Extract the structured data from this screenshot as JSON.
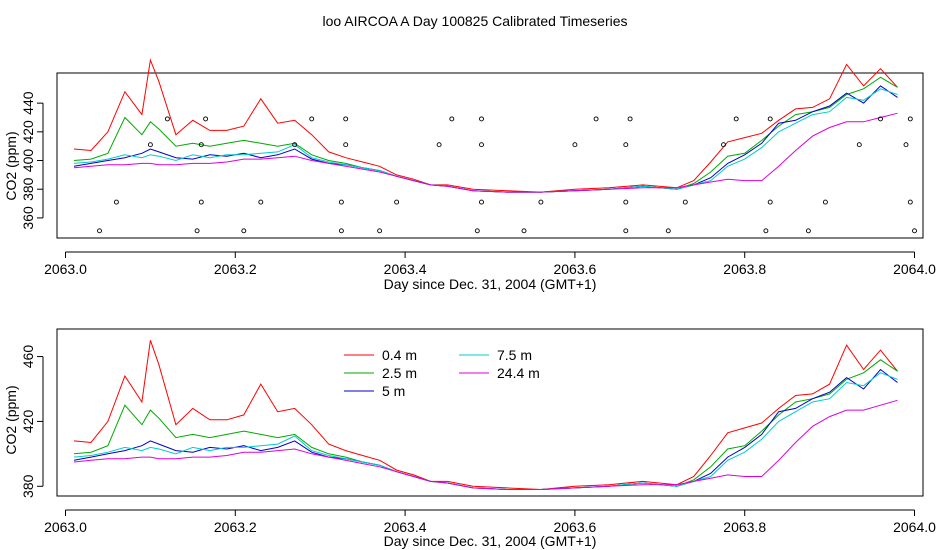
{
  "title": "loo AIRCOA A  Day 100825  Calibrated Timeseries",
  "chart_data": [
    {
      "type": "line",
      "xlabel": "Day since Dec. 31, 2004 (GMT+1)",
      "ylabel": "CO2 (ppm)",
      "xlim": [
        2062.99,
        2064.01
      ],
      "ylim": [
        346,
        461
      ],
      "xticks": [
        "2063.0",
        "2063.2",
        "2063.4",
        "2063.6",
        "2063.8",
        "2064.0"
      ],
      "yticks": [
        "360",
        "380",
        "400",
        "420",
        "440"
      ],
      "series": [
        {
          "name": "0.4 m",
          "color": "#ff0000",
          "x": [
            2063.01,
            2063.03,
            2063.05,
            2063.07,
            2063.09,
            2063.1,
            2063.11,
            2063.13,
            2063.15,
            2063.17,
            2063.19,
            2063.21,
            2063.23,
            2063.25,
            2063.27,
            2063.29,
            2063.31,
            2063.33,
            2063.35,
            2063.37,
            2063.39,
            2063.41,
            2063.43,
            2063.45,
            2063.48,
            2063.52,
            2063.56,
            2063.6,
            2063.64,
            2063.68,
            2063.72,
            2063.74,
            2063.76,
            2063.78,
            2063.8,
            2063.82,
            2063.84,
            2063.86,
            2063.88,
            2063.9,
            2063.92,
            2063.94,
            2063.96,
            2063.98
          ],
          "y": [
            408,
            407,
            420,
            448,
            432,
            470,
            455,
            418,
            428,
            421,
            421,
            424,
            443,
            426,
            428,
            418,
            406,
            402,
            399,
            396,
            390,
            387,
            383,
            383,
            380,
            379,
            378,
            380,
            381,
            383,
            381,
            386,
            399,
            413,
            416,
            419,
            428,
            436,
            437,
            443,
            467,
            452,
            464,
            451
          ]
        },
        {
          "name": "2.5 m",
          "color": "#00aa00",
          "x": [
            2063.01,
            2063.03,
            2063.05,
            2063.07,
            2063.09,
            2063.1,
            2063.11,
            2063.13,
            2063.15,
            2063.17,
            2063.19,
            2063.21,
            2063.23,
            2063.25,
            2063.27,
            2063.29,
            2063.31,
            2063.33,
            2063.35,
            2063.37,
            2063.39,
            2063.41,
            2063.43,
            2063.45,
            2063.48,
            2063.52,
            2063.56,
            2063.6,
            2063.64,
            2063.68,
            2063.72,
            2063.74,
            2063.76,
            2063.78,
            2063.8,
            2063.82,
            2063.84,
            2063.86,
            2063.88,
            2063.9,
            2063.92,
            2063.94,
            2063.96,
            2063.98
          ],
          "y": [
            400,
            401,
            405,
            430,
            418,
            427,
            422,
            410,
            412,
            410,
            412,
            414,
            412,
            410,
            412,
            404,
            400,
            398,
            395,
            393,
            389,
            386,
            383,
            382,
            379,
            378,
            378,
            379,
            380,
            382,
            380,
            384,
            392,
            403,
            405,
            414,
            424,
            432,
            434,
            437,
            446,
            450,
            458,
            451
          ]
        },
        {
          "name": "5 m",
          "color": "#0000cc",
          "x": [
            2063.01,
            2063.03,
            2063.05,
            2063.07,
            2063.09,
            2063.1,
            2063.11,
            2063.13,
            2063.15,
            2063.17,
            2063.19,
            2063.21,
            2063.23,
            2063.25,
            2063.27,
            2063.29,
            2063.31,
            2063.33,
            2063.35,
            2063.37,
            2063.39,
            2063.41,
            2063.43,
            2063.45,
            2063.48,
            2063.52,
            2063.56,
            2063.6,
            2063.64,
            2063.68,
            2063.72,
            2063.74,
            2063.76,
            2063.78,
            2063.8,
            2063.82,
            2063.84,
            2063.86,
            2063.88,
            2063.9,
            2063.92,
            2063.94,
            2063.96,
            2063.98
          ],
          "y": [
            396,
            398,
            400,
            402,
            405,
            408,
            406,
            402,
            401,
            404,
            403,
            405,
            402,
            404,
            408,
            401,
            398,
            397,
            395,
            393,
            389,
            386,
            383,
            382,
            379,
            378,
            378,
            379,
            380,
            382,
            380,
            383,
            388,
            398,
            404,
            412,
            426,
            428,
            434,
            438,
            447,
            440,
            452,
            444
          ]
        },
        {
          "name": "7.5 m",
          "color": "#00cccc",
          "x": [
            2063.01,
            2063.03,
            2063.05,
            2063.07,
            2063.09,
            2063.1,
            2063.11,
            2063.13,
            2063.15,
            2063.17,
            2063.19,
            2063.21,
            2063.23,
            2063.25,
            2063.27,
            2063.29,
            2063.31,
            2063.33,
            2063.35,
            2063.37,
            2063.39,
            2063.41,
            2063.43,
            2063.45,
            2063.48,
            2063.52,
            2063.56,
            2063.6,
            2063.64,
            2063.68,
            2063.72,
            2063.74,
            2063.76,
            2063.78,
            2063.8,
            2063.82,
            2063.84,
            2063.86,
            2063.88,
            2063.9,
            2063.92,
            2063.94,
            2063.96,
            2063.98
          ],
          "y": [
            398,
            399,
            401,
            404,
            402,
            404,
            403,
            400,
            404,
            402,
            404,
            404,
            405,
            406,
            411,
            402,
            399,
            397,
            395,
            393,
            389,
            386,
            383,
            382,
            379,
            378,
            378,
            379,
            380,
            382,
            380,
            383,
            386,
            396,
            401,
            409,
            420,
            426,
            432,
            434,
            444,
            442,
            450,
            446
          ]
        },
        {
          "name": "24.4 m",
          "color": "#dd00dd",
          "x": [
            2063.01,
            2063.03,
            2063.05,
            2063.07,
            2063.09,
            2063.1,
            2063.11,
            2063.13,
            2063.15,
            2063.17,
            2063.19,
            2063.21,
            2063.23,
            2063.25,
            2063.27,
            2063.29,
            2063.31,
            2063.33,
            2063.35,
            2063.37,
            2063.39,
            2063.41,
            2063.43,
            2063.45,
            2063.48,
            2063.52,
            2063.56,
            2063.6,
            2063.64,
            2063.68,
            2063.72,
            2063.74,
            2063.76,
            2063.78,
            2063.8,
            2063.82,
            2063.84,
            2063.86,
            2063.88,
            2063.9,
            2063.92,
            2063.94,
            2063.96,
            2063.98
          ],
          "y": [
            395,
            396,
            397,
            397,
            398,
            398,
            397,
            397,
            398,
            398,
            399,
            401,
            401,
            402,
            403,
            400,
            398,
            396,
            394,
            392,
            389,
            386,
            383,
            382,
            379,
            378,
            378,
            379,
            380,
            381,
            381,
            383,
            385,
            387,
            386,
            386,
            396,
            407,
            417,
            423,
            427,
            427,
            430,
            433
          ]
        }
      ],
      "points": {
        "x": [
          2063.04,
          2063.06,
          2063.1,
          2063.12,
          2063.155,
          2063.16,
          2063.16,
          2063.165,
          2063.21,
          2063.23,
          2063.27,
          2063.29,
          2063.325,
          2063.325,
          2063.33,
          2063.33,
          2063.37,
          2063.39,
          2063.44,
          2063.455,
          2063.485,
          2063.49,
          2063.49,
          2063.49,
          2063.54,
          2063.56,
          2063.6,
          2063.625,
          2063.66,
          2063.66,
          2063.66,
          2063.665,
          2063.71,
          2063.73,
          2063.775,
          2063.79,
          2063.825,
          2063.83,
          2063.83,
          2063.875,
          2063.895,
          2063.935,
          2063.96,
          2063.99,
          2063.995,
          2063.995,
          2064.0
        ],
        "y": [
          351,
          371,
          411,
          429,
          351,
          371,
          411,
          429,
          351,
          371,
          411,
          429,
          351,
          371,
          411,
          429,
          351,
          371,
          411,
          429,
          351,
          371,
          411,
          429,
          351,
          371,
          411,
          429,
          351,
          371,
          411,
          429,
          351,
          371,
          411,
          429,
          351,
          371,
          429,
          351,
          371,
          411,
          429,
          411,
          429,
          371,
          351
        ]
      }
    },
    {
      "type": "line",
      "xlabel": "Day since Dec. 31, 2004 (GMT+1)",
      "ylabel": "CO2 (ppm)",
      "xlim": [
        2062.99,
        2064.01
      ],
      "ylim": [
        374,
        477
      ],
      "xticks": [
        "2063.0",
        "2063.2",
        "2063.4",
        "2063.6",
        "2063.8",
        "2064.0"
      ],
      "yticks": [
        "380",
        "420",
        "460"
      ],
      "legend": [
        "0.4 m",
        "2.5 m",
        "5 m",
        "7.5 m",
        "24.4 m"
      ],
      "legend_position": "top-left"
    }
  ]
}
